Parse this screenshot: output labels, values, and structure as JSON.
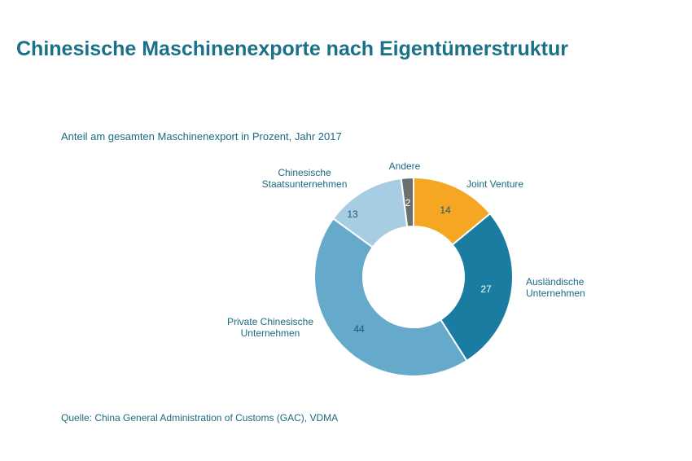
{
  "page": {
    "title": "Chinesische Maschinenexporte nach Eigentümerstruktur",
    "subtitle": "Anteil am gesamten Maschinenexport in Prozent, Jahr 2017",
    "source": "Quelle: China General Administration of Customs (GAC), VDMA"
  },
  "chart_data": {
    "type": "pie",
    "variant": "donut",
    "title": "Chinesische Maschinenexporte nach Eigentümerstruktur",
    "subtitle": "Anteil am gesamten Maschinenexport in Prozent, Jahr 2017",
    "unit": "Prozent",
    "start_angle_deg": 0,
    "direction": "clockwise",
    "slices": [
      {
        "label": "Joint Venture",
        "value": 14,
        "color": "#f5a623",
        "value_color": "#1a5a70"
      },
      {
        "label": "Ausländische Unternehmen",
        "value": 27,
        "color": "#1a7ca0",
        "value_color": "#ffffff"
      },
      {
        "label": "Private Chinesische Unternehmen",
        "value": 44,
        "color": "#66aacb",
        "value_color": "#1a5a70"
      },
      {
        "label": "Chinesische Staatsunternehmen",
        "value": 13,
        "color": "#a6cde2",
        "value_color": "#1a5a70"
      },
      {
        "label": "Andere",
        "value": 2,
        "color": "#6d6e70",
        "value_color": "#ffffff"
      }
    ]
  }
}
